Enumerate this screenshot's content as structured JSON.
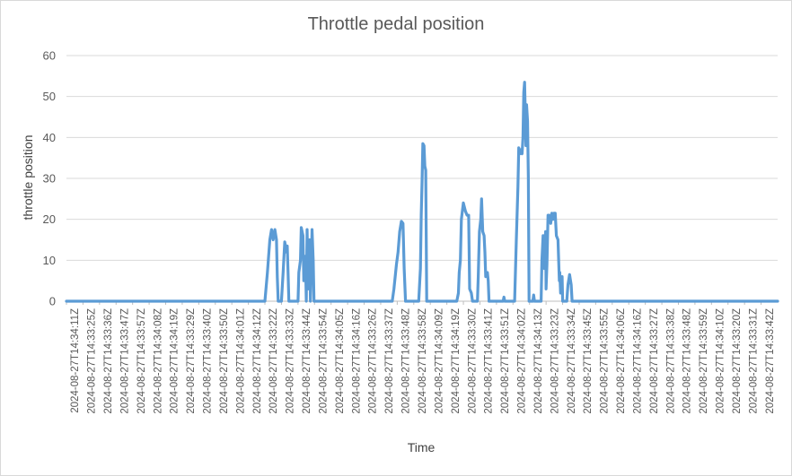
{
  "chart_data": {
    "type": "line",
    "title": "Throttle pedal position",
    "xlabel": "Time",
    "ylabel": "throttle position",
    "ylim": [
      0,
      60
    ],
    "yticks": [
      0,
      10,
      20,
      30,
      40,
      50,
      60
    ],
    "grid": "horizontal",
    "legend": "none",
    "series_color": "#5B9BD5",
    "x_tick_labels": [
      "2024-08-27T14:34:11Z",
      "2024-08-27T14:33:25Z",
      "2024-08-27T14:33:36Z",
      "2024-08-27T14:33:47Z",
      "2024-08-27T14:33:57Z",
      "2024-08-27T14:34:08Z",
      "2024-08-27T14:34:19Z",
      "2024-08-27T14:33:29Z",
      "2024-08-27T14:33:40Z",
      "2024-08-27T14:33:50Z",
      "2024-08-27T14:34:01Z",
      "2024-08-27T14:34:12Z",
      "2024-08-27T14:33:22Z",
      "2024-08-27T14:33:33Z",
      "2024-08-27T14:33:44Z",
      "2024-08-27T14:33:54Z",
      "2024-08-27T14:34:05Z",
      "2024-08-27T14:34:16Z",
      "2024-08-27T14:33:26Z",
      "2024-08-27T14:33:37Z",
      "2024-08-27T14:33:48Z",
      "2024-08-27T14:33:58Z",
      "2024-08-27T14:34:09Z",
      "2024-08-27T14:34:19Z",
      "2024-08-27T14:33:30Z",
      "2024-08-27T14:33:41Z",
      "2024-08-27T14:33:51Z",
      "2024-08-27T14:34:02Z",
      "2024-08-27T14:34:13Z",
      "2024-08-27T14:33:23Z",
      "2024-08-27T14:33:34Z",
      "2024-08-27T14:33:45Z",
      "2024-08-27T14:33:55Z",
      "2024-08-27T14:34:06Z",
      "2024-08-27T14:34:16Z",
      "2024-08-27T14:33:27Z",
      "2024-08-27T14:33:38Z",
      "2024-08-27T14:33:48Z",
      "2024-08-27T14:33:59Z",
      "2024-08-27T14:34:10Z",
      "2024-08-27T14:33:20Z",
      "2024-08-27T14:33:31Z",
      "2024-08-27T14:33:42Z"
    ],
    "points": [
      {
        "x": 0,
        "y": 0
      },
      {
        "x": 12,
        "y": 0
      },
      {
        "x": 12.15,
        "y": 7
      },
      {
        "x": 12.3,
        "y": 15
      },
      {
        "x": 12.4,
        "y": 17.5
      },
      {
        "x": 12.5,
        "y": 15
      },
      {
        "x": 12.6,
        "y": 17.5
      },
      {
        "x": 12.7,
        "y": 15
      },
      {
        "x": 12.75,
        "y": 6
      },
      {
        "x": 12.8,
        "y": 0
      },
      {
        "x": 13.0,
        "y": 0
      },
      {
        "x": 13.1,
        "y": 7
      },
      {
        "x": 13.2,
        "y": 14.5
      },
      {
        "x": 13.3,
        "y": 12
      },
      {
        "x": 13.35,
        "y": 13.5
      },
      {
        "x": 13.4,
        "y": 7
      },
      {
        "x": 13.45,
        "y": 0
      },
      {
        "x": 14.0,
        "y": 0
      },
      {
        "x": 14.05,
        "y": 7
      },
      {
        "x": 14.15,
        "y": 10
      },
      {
        "x": 14.2,
        "y": 18
      },
      {
        "x": 14.3,
        "y": 16
      },
      {
        "x": 14.35,
        "y": 5
      },
      {
        "x": 14.45,
        "y": 11
      },
      {
        "x": 14.5,
        "y": 0
      },
      {
        "x": 14.55,
        "y": 17.5
      },
      {
        "x": 14.62,
        "y": 3
      },
      {
        "x": 14.7,
        "y": 15
      },
      {
        "x": 14.75,
        "y": 0
      },
      {
        "x": 14.85,
        "y": 17.5
      },
      {
        "x": 14.92,
        "y": 10
      },
      {
        "x": 14.97,
        "y": 0
      },
      {
        "x": 19.7,
        "y": 0
      },
      {
        "x": 19.8,
        "y": 3
      },
      {
        "x": 19.95,
        "y": 9
      },
      {
        "x": 20.05,
        "y": 12
      },
      {
        "x": 20.15,
        "y": 17
      },
      {
        "x": 20.25,
        "y": 19.5
      },
      {
        "x": 20.35,
        "y": 19
      },
      {
        "x": 20.42,
        "y": 8
      },
      {
        "x": 20.5,
        "y": 0
      },
      {
        "x": 21.3,
        "y": 0
      },
      {
        "x": 21.4,
        "y": 8
      },
      {
        "x": 21.45,
        "y": 21
      },
      {
        "x": 21.5,
        "y": 29
      },
      {
        "x": 21.55,
        "y": 38.5
      },
      {
        "x": 21.62,
        "y": 38
      },
      {
        "x": 21.67,
        "y": 33
      },
      {
        "x": 21.72,
        "y": 32
      },
      {
        "x": 21.78,
        "y": 0
      },
      {
        "x": 23.6,
        "y": 0
      },
      {
        "x": 23.7,
        "y": 2
      },
      {
        "x": 23.75,
        "y": 7
      },
      {
        "x": 23.82,
        "y": 10
      },
      {
        "x": 23.88,
        "y": 20
      },
      {
        "x": 24.0,
        "y": 24
      },
      {
        "x": 24.12,
        "y": 22
      },
      {
        "x": 24.22,
        "y": 21
      },
      {
        "x": 24.32,
        "y": 21
      },
      {
        "x": 24.38,
        "y": 3
      },
      {
        "x": 24.48,
        "y": 2
      },
      {
        "x": 24.55,
        "y": 0
      },
      {
        "x": 24.85,
        "y": 0
      },
      {
        "x": 24.9,
        "y": 6
      },
      {
        "x": 24.97,
        "y": 17
      },
      {
        "x": 25.05,
        "y": 20
      },
      {
        "x": 25.1,
        "y": 25
      },
      {
        "x": 25.17,
        "y": 17
      },
      {
        "x": 25.25,
        "y": 16
      },
      {
        "x": 25.3,
        "y": 12
      },
      {
        "x": 25.35,
        "y": 6
      },
      {
        "x": 25.45,
        "y": 7
      },
      {
        "x": 25.5,
        "y": 5
      },
      {
        "x": 25.55,
        "y": 0
      },
      {
        "x": 26.4,
        "y": 0
      },
      {
        "x": 26.45,
        "y": 1
      },
      {
        "x": 26.5,
        "y": 0
      },
      {
        "x": 27.1,
        "y": 0
      },
      {
        "x": 27.2,
        "y": 15
      },
      {
        "x": 27.3,
        "y": 28
      },
      {
        "x": 27.35,
        "y": 37.5
      },
      {
        "x": 27.42,
        "y": 36
      },
      {
        "x": 27.48,
        "y": 37
      },
      {
        "x": 27.55,
        "y": 36
      },
      {
        "x": 27.6,
        "y": 40
      },
      {
        "x": 27.65,
        "y": 51
      },
      {
        "x": 27.7,
        "y": 53.5
      },
      {
        "x": 27.75,
        "y": 45
      },
      {
        "x": 27.78,
        "y": 38
      },
      {
        "x": 27.82,
        "y": 48
      },
      {
        "x": 27.88,
        "y": 44
      },
      {
        "x": 27.93,
        "y": 30
      },
      {
        "x": 27.97,
        "y": 0
      },
      {
        "x": 28.2,
        "y": 0
      },
      {
        "x": 28.25,
        "y": 1.5
      },
      {
        "x": 28.3,
        "y": 0
      },
      {
        "x": 28.7,
        "y": 0
      },
      {
        "x": 28.75,
        "y": 10
      },
      {
        "x": 28.82,
        "y": 16
      },
      {
        "x": 28.9,
        "y": 8
      },
      {
        "x": 28.97,
        "y": 17
      },
      {
        "x": 29.0,
        "y": 3
      },
      {
        "x": 29.05,
        "y": 9
      },
      {
        "x": 29.12,
        "y": 21
      },
      {
        "x": 29.2,
        "y": 21
      },
      {
        "x": 29.28,
        "y": 19
      },
      {
        "x": 29.35,
        "y": 21.5
      },
      {
        "x": 29.42,
        "y": 20
      },
      {
        "x": 29.48,
        "y": 21.5
      },
      {
        "x": 29.55,
        "y": 21.5
      },
      {
        "x": 29.62,
        "y": 16
      },
      {
        "x": 29.72,
        "y": 15
      },
      {
        "x": 29.75,
        "y": 11
      },
      {
        "x": 29.8,
        "y": 5
      },
      {
        "x": 29.83,
        "y": 7
      },
      {
        "x": 29.88,
        "y": 2
      },
      {
        "x": 29.93,
        "y": 3
      },
      {
        "x": 29.97,
        "y": 6
      },
      {
        "x": 30.0,
        "y": 0
      },
      {
        "x": 30.25,
        "y": 0
      },
      {
        "x": 30.32,
        "y": 4
      },
      {
        "x": 30.42,
        "y": 6.5
      },
      {
        "x": 30.52,
        "y": 4
      },
      {
        "x": 30.57,
        "y": 0
      },
      {
        "x": 43,
        "y": 0
      }
    ]
  }
}
